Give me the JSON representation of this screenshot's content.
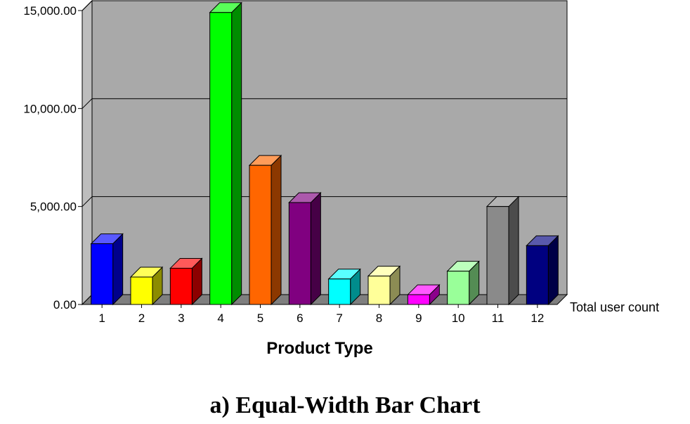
{
  "caption": "a) Equal-Width Bar Chart",
  "chart_data": {
    "type": "bar",
    "categories": [
      "1",
      "2",
      "3",
      "4",
      "5",
      "6",
      "7",
      "8",
      "9",
      "10",
      "11",
      "12"
    ],
    "series": [
      {
        "name": "Total user count",
        "values": [
          3100,
          1400,
          1850,
          14900,
          7100,
          5200,
          1300,
          1450,
          500,
          1700,
          5000,
          3000
        ],
        "colors": [
          "#0000ff",
          "#ffff00",
          "#ff0000",
          "#00ff00",
          "#ff6600",
          "#800080",
          "#00ffff",
          "#ffff99",
          "#ff00ff",
          "#99ff99",
          "#8a8a8a",
          "#000080"
        ]
      }
    ],
    "xlabel": "Product Type",
    "ylabel": "",
    "ylim": [
      0,
      15000
    ],
    "yticks": [
      "0.00",
      "5,000.00",
      "10,000.00",
      "15,000.00"
    ],
    "ytick_values": [
      0,
      5000,
      10000,
      15000
    ],
    "grid": true,
    "plot_background": "#a9a9a9",
    "wall_color": "#bdbdbd",
    "floor_color": "#7f7f7f"
  }
}
